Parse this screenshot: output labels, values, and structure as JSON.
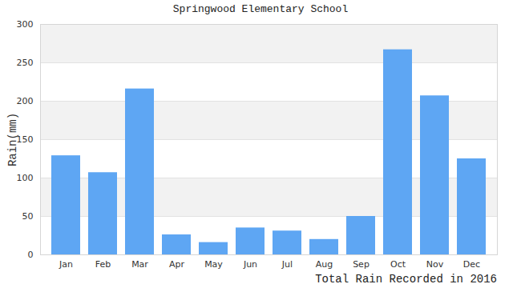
{
  "chart_data": {
    "type": "bar",
    "title": "Springwood Elementary School",
    "y_label": "Rain(mm)",
    "caption": "Total Rain Recorded in 2016",
    "categories": [
      "Jan",
      "Feb",
      "Mar",
      "Apr",
      "May",
      "Jun",
      "Jul",
      "Aug",
      "Sep",
      "Oct",
      "Nov",
      "Dec"
    ],
    "values": [
      129,
      107,
      216,
      26,
      16,
      35,
      31,
      20,
      50,
      267,
      207,
      125
    ],
    "color": "#5ea6f3",
    "ylim": [
      0,
      300
    ],
    "yticks": [
      0,
      50,
      100,
      150,
      200,
      250,
      300
    ],
    "grid": true
  }
}
